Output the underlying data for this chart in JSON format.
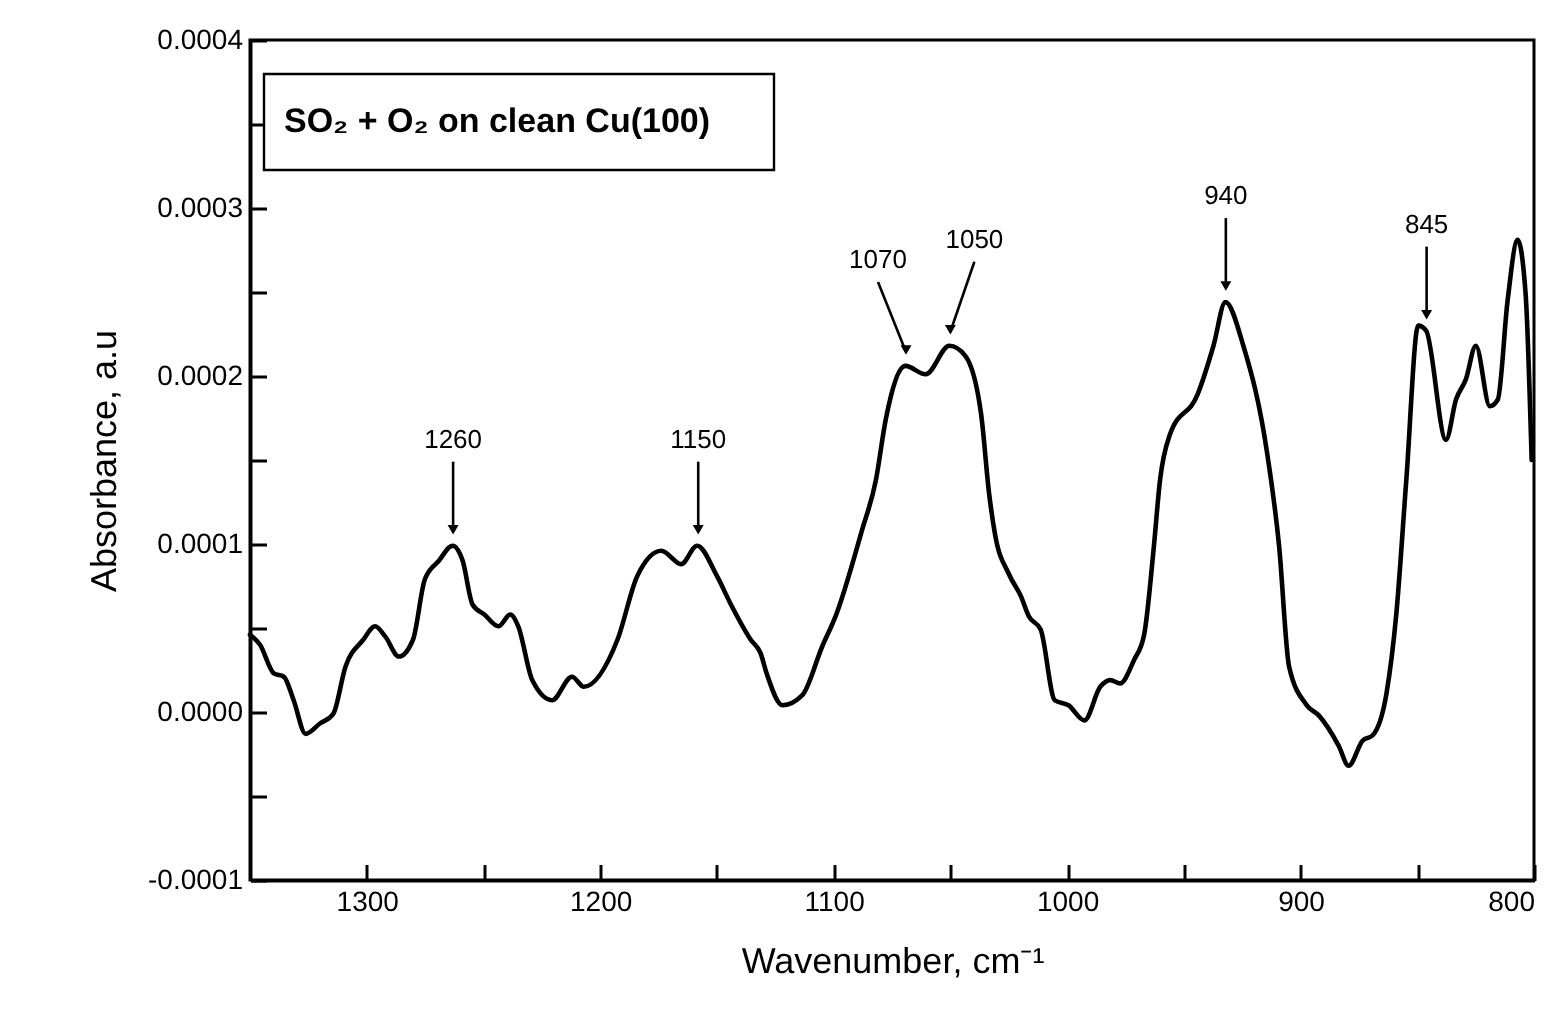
{
  "chart_data": {
    "type": "line",
    "title": "SO₂ + O₂ on clean Cu(100)",
    "xlabel": "Wavenumber, cm⁻¹",
    "ylabel": "Absorbance, a.u",
    "x": [
      1350,
      1345.7,
      1339.8,
      1335.5,
      1331.3,
      1326.2,
      1320.2,
      1314.3,
      1309.1,
      1301.5,
      1296.4,
      1292.1,
      1286.2,
      1280.2,
      1275.1,
      1269.1,
      1263.2,
      1258.9,
      1254.7,
      1249.6,
      1243.6,
      1238.5,
      1235.1,
      1229.1,
      1220.6,
      1212.1,
      1207.0,
      1192.6,
      1184.1,
      1173.8,
      1165.3,
      1158.5,
      1150.0,
      1144.0,
      1135.5,
      1131.3,
      1128.7,
      1121.9,
      1113.4,
      1104.9,
      1098.9,
      1087.9,
      1081.9,
      1077.7,
      1069.2,
      1060.6,
      1050.4,
      1043.6,
      1036.8,
      1033.4,
      1030.9,
      1024.9,
      1019.8,
      1016.4,
      1011.3,
      1005.3,
      999.4,
      992.6,
      985.8,
      981.5,
      977.3,
      971.3,
      967.0,
      962.8,
      960.2,
      956.0,
      944.1,
      937.3,
      932.2,
      924.5,
      914.3,
      909.2,
      904.9,
      897.3,
      892.2,
      883.7,
      879.4,
      873.4,
      869.2,
      863.2,
      859.0,
      854.7,
      849.6,
      846.2,
      837.7,
      833.4,
      829.2,
      824.9,
      818.9,
      815.5,
      811.3,
      807.0,
      803.6,
      801
    ],
    "series": [
      {
        "color": "#000000",
        "values": [
          4.6e-05,
          4e-05,
          2.3e-05,
          2.1e-05,
          7e-06,
          -1.3e-05,
          -7e-06,
          -1e-06,
          2.7e-05,
          4.3e-05,
          5.1e-05,
          4.5e-05,
          3.3e-05,
          4.3e-05,
          7.9e-05,
          9e-05,
          9.9e-05,
          9e-05,
          6.4e-05,
          5.8e-05,
          5.1e-05,
          5.8e-05,
          5.1e-05,
          1.9e-05,
          7e-06,
          2.1e-05,
          1.5e-05,
          4.3e-05,
          8.1e-05,
          9.6e-05,
          8.8e-05,
          9.9e-05,
          8.1e-05,
          6.4e-05,
          4.3e-05,
          3.5e-05,
          2.3e-05,
          4e-06,
          1e-05,
          3.9e-05,
          5.8e-05,
          0.000108,
          0.000138,
          0.000174,
          0.000206,
          0.000201,
          0.000218,
          0.000212,
          0.000177,
          0.00013,
          0.000106,
          8.2e-05,
          6.9e-05,
          5.7e-05,
          4.9e-05,
          7e-06,
          4e-06,
          -5e-06,
          1.5e-05,
          1.9e-05,
          1.7e-05,
          3.1e-05,
          4.6e-05,
          9.9e-05,
          0.000138,
          0.000165,
          0.000189,
          0.000218,
          0.000244,
          0.000218,
          0.000154,
          9.9e-05,
          2.7e-05,
          4e-06,
          -2e-06,
          -2e-05,
          -3.2e-05,
          -1.7e-05,
          -1.4e-05,
          1.1e-05,
          5.8e-05,
          0.000138,
          0.00023,
          0.000227,
          0.000162,
          0.000186,
          0.000198,
          0.000218,
          0.000182,
          0.000186,
          0.000245,
          0.000281,
          0.000249,
          0.00015
        ]
      }
    ],
    "xlim": [
      1350,
      800
    ],
    "xticks": [
      1300,
      {
        "value": 1250,
        "label": null
      },
      1200,
      {
        "value": 1150,
        "label": null
      },
      1100,
      {
        "value": 1050,
        "label": null
      },
      1000,
      {
        "value": 950,
        "label": null
      },
      900,
      {
        "value": 850,
        "label": null
      },
      800
    ],
    "ylim": [
      -0.0001,
      0.0004
    ],
    "yticks": [
      {
        "value": -0.0001,
        "label": "-0.0001"
      },
      {
        "value": -5e-05,
        "label": null
      },
      {
        "value": 0,
        "label": "0.0000"
      },
      {
        "value": 5e-05,
        "label": null
      },
      {
        "value": 0.0001,
        "label": "0.0001"
      },
      {
        "value": 0.00015,
        "label": null
      },
      {
        "value": 0.0002,
        "label": "0.0002"
      },
      {
        "value": 0.00025,
        "label": null
      },
      {
        "value": 0.0003,
        "label": "0.0003"
      },
      {
        "value": 0.00035,
        "label": null
      },
      {
        "value": 0.0004,
        "label": "0.0004"
      }
    ],
    "line_style": "solid",
    "marker": "none",
    "annotations": [
      {
        "text": "1260",
        "x": 1263,
        "y": 9.9e-05
      },
      {
        "text": "1150",
        "x": 1158,
        "y": 9.9e-05
      },
      {
        "text": "1070",
        "x": 1069,
        "y": 0.000206
      },
      {
        "text": "1050",
        "x": 1050,
        "y": 0.000218
      },
      {
        "text": "940",
        "x": 932,
        "y": 0.000244
      },
      {
        "text": "845",
        "x": 846,
        "y": 0.000227
      }
    ]
  }
}
